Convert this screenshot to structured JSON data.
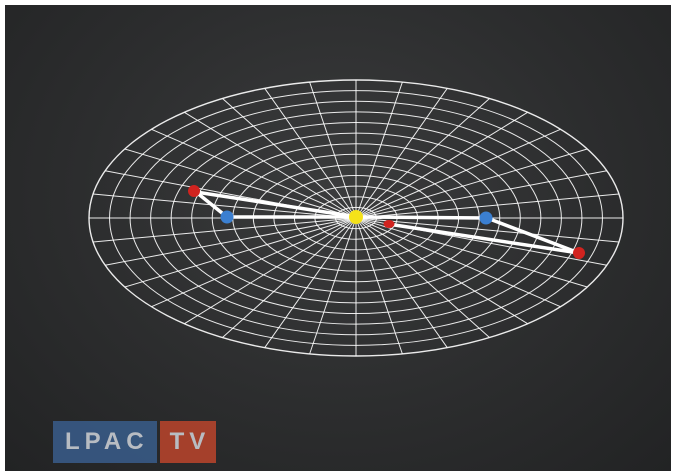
{
  "logo": {
    "part1": "LPAC",
    "part2": "TV"
  },
  "colors": {
    "background": "#2c2d2e",
    "grid": "#ffffff",
    "sun": "#f5e21a",
    "red_body": "#d1231f",
    "blue_body": "#3b7fd1",
    "path_line": "#ffffff",
    "logo_blue": "#3a5f8f",
    "logo_red": "#c1462c"
  },
  "icons": {
    "sun": "yellow-sphere",
    "planets": [
      "red-sphere",
      "blue-sphere"
    ]
  }
}
